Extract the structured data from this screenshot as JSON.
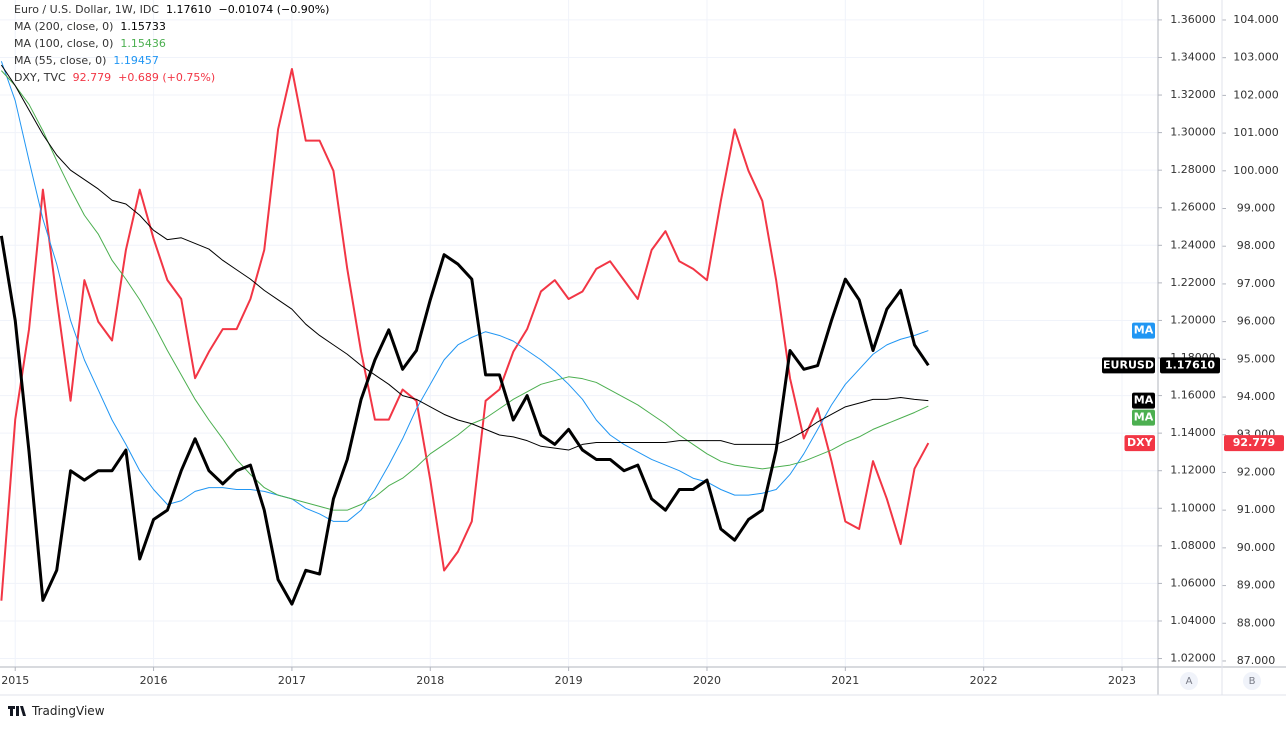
{
  "chart_data": {
    "type": "line",
    "xlim": [
      2014.89,
      2023.26
    ],
    "xticks": [
      2015,
      2016,
      2017,
      2018,
      2019,
      2020,
      2021,
      2022,
      2023
    ],
    "ylim": [
      1.0155,
      1.3706
    ],
    "yticks": [
      {
        "value": 1.02,
        "label": "1.02000"
      },
      {
        "value": 1.04,
        "label": "1.04000"
      },
      {
        "value": 1.06,
        "label": "1.06000"
      },
      {
        "value": 1.08,
        "label": "1.08000"
      },
      {
        "value": 1.1,
        "label": "1.10000"
      },
      {
        "value": 1.12,
        "label": "1.12000"
      },
      {
        "value": 1.14,
        "label": "1.14000"
      },
      {
        "value": 1.16,
        "label": "1.16000"
      },
      {
        "value": 1.18,
        "label": "1.18000"
      },
      {
        "value": 1.2,
        "label": "1.20000"
      },
      {
        "value": 1.22,
        "label": "1.22000"
      },
      {
        "value": 1.24,
        "label": "1.24000"
      },
      {
        "value": 1.26,
        "label": "1.26000"
      },
      {
        "value": 1.28,
        "label": "1.28000"
      },
      {
        "value": 1.3,
        "label": "1.30000"
      },
      {
        "value": 1.32,
        "label": "1.32000"
      },
      {
        "value": 1.34,
        "label": "1.34000"
      },
      {
        "value": 1.36,
        "label": "1.36000"
      }
    ],
    "y2lim": [
      86.84,
      104.53
    ],
    "y2ticks": [
      {
        "value": 87,
        "label": "87.000"
      },
      {
        "value": 88,
        "label": "88.000"
      },
      {
        "value": 89,
        "label": "89.000"
      },
      {
        "value": 90,
        "label": "90.000"
      },
      {
        "value": 91,
        "label": "91.000"
      },
      {
        "value": 92,
        "label": "92.000"
      },
      {
        "value": 93,
        "label": "93.000"
      },
      {
        "value": 94,
        "label": "94.000"
      },
      {
        "value": 95,
        "label": "95.000"
      },
      {
        "value": 96,
        "label": "96.000"
      },
      {
        "value": 97,
        "label": "97.000"
      },
      {
        "value": 98,
        "label": "98.000"
      },
      {
        "value": 99,
        "label": "99.000"
      },
      {
        "value": 100,
        "label": "100.000"
      },
      {
        "value": 101,
        "label": "101.000"
      },
      {
        "value": 102,
        "label": "102.000"
      },
      {
        "value": 103,
        "label": "103.000"
      },
      {
        "value": 104,
        "label": "104.000"
      }
    ],
    "grid": true,
    "x": [
      2014.9,
      2015,
      2015.1,
      2015.2,
      2015.3,
      2015.4,
      2015.5,
      2015.6,
      2015.7,
      2015.8,
      2015.9,
      2016,
      2016.1,
      2016.2,
      2016.3,
      2016.4,
      2016.5,
      2016.6,
      2016.7,
      2016.8,
      2016.9,
      2017,
      2017.1,
      2017.2,
      2017.3,
      2017.4,
      2017.5,
      2017.6,
      2017.7,
      2017.8,
      2017.9,
      2018,
      2018.1,
      2018.2,
      2018.3,
      2018.4,
      2018.5,
      2018.6,
      2018.7,
      2018.8,
      2018.9,
      2019,
      2019.1,
      2019.2,
      2019.3,
      2019.4,
      2019.5,
      2019.6,
      2019.7,
      2019.8,
      2019.9,
      2020,
      2020.1,
      2020.2,
      2020.3,
      2020.4,
      2020.5,
      2020.6,
      2020.7,
      2020.8,
      2020.9,
      2021,
      2021.1,
      2021.2,
      2021.3,
      2021.4,
      2021.5,
      2021.6
    ],
    "series": [
      {
        "name": "Euro / U.S. Dollar, 1W, IDC",
        "last_label": "1.17610",
        "change_label": "−0.01074 (−0.90%)",
        "tag": "EURUSD",
        "show_value_on_axis": true,
        "color": "#000000",
        "width": 3,
        "values": [
          1.245,
          1.2,
          1.13,
          1.051,
          1.067,
          1.12,
          1.115,
          1.12,
          1.12,
          1.131,
          1.073,
          1.094,
          1.099,
          1.12,
          1.137,
          1.12,
          1.113,
          1.12,
          1.123,
          1.099,
          1.062,
          1.049,
          1.067,
          1.065,
          1.105,
          1.126,
          1.158,
          1.179,
          1.195,
          1.174,
          1.184,
          1.211,
          1.235,
          1.23,
          1.222,
          1.171,
          1.171,
          1.147,
          1.16,
          1.139,
          1.134,
          1.142,
          1.131,
          1.126,
          1.126,
          1.12,
          1.123,
          1.105,
          1.099,
          1.11,
          1.11,
          1.115,
          1.089,
          1.083,
          1.094,
          1.099,
          1.131,
          1.184,
          1.174,
          1.176,
          1.2,
          1.222,
          1.211,
          1.184,
          1.206,
          1.216,
          1.187,
          1.1761
        ]
      },
      {
        "name": "MA (200, close, 0)",
        "last_label": "1.15733",
        "tag": "MA",
        "show_value_on_axis": false,
        "color": "#000000",
        "width": 1,
        "values": [
          1.336,
          1.325,
          1.312,
          1.299,
          1.288,
          1.28,
          1.275,
          1.27,
          1.264,
          1.262,
          1.256,
          1.248,
          1.243,
          1.244,
          1.241,
          1.238,
          1.232,
          1.227,
          1.222,
          1.216,
          1.211,
          1.206,
          1.198,
          1.192,
          1.187,
          1.182,
          1.176,
          1.171,
          1.166,
          1.16,
          1.158,
          1.154,
          1.15,
          1.147,
          1.145,
          1.142,
          1.139,
          1.138,
          1.136,
          1.133,
          1.132,
          1.131,
          1.134,
          1.135,
          1.135,
          1.135,
          1.135,
          1.135,
          1.135,
          1.136,
          1.136,
          1.136,
          1.136,
          1.134,
          1.134,
          1.134,
          1.134,
          1.137,
          1.141,
          1.146,
          1.15,
          1.154,
          1.156,
          1.158,
          1.158,
          1.159,
          1.158,
          1.1573
        ]
      },
      {
        "name": "MA (100, close, 0)",
        "last_label": "1.15436",
        "tag": "MA",
        "show_value_on_axis": false,
        "color": "#4caf50",
        "width": 1,
        "values": [
          1.333,
          1.325,
          1.315,
          1.301,
          1.285,
          1.27,
          1.256,
          1.246,
          1.232,
          1.222,
          1.211,
          1.198,
          1.184,
          1.171,
          1.158,
          1.147,
          1.137,
          1.126,
          1.118,
          1.111,
          1.107,
          1.105,
          1.103,
          1.101,
          1.099,
          1.099,
          1.102,
          1.106,
          1.112,
          1.116,
          1.122,
          1.129,
          1.134,
          1.139,
          1.145,
          1.148,
          1.153,
          1.158,
          1.162,
          1.166,
          1.168,
          1.17,
          1.169,
          1.167,
          1.163,
          1.159,
          1.155,
          1.15,
          1.145,
          1.139,
          1.134,
          1.129,
          1.125,
          1.123,
          1.122,
          1.121,
          1.122,
          1.123,
          1.125,
          1.128,
          1.131,
          1.135,
          1.138,
          1.142,
          1.145,
          1.148,
          1.151,
          1.1544
        ]
      },
      {
        "name": "MA (55, close, 0)",
        "last_label": "1.19457",
        "tag": "MA",
        "show_value_on_axis": false,
        "color": "#2196f3",
        "width": 1,
        "values": [
          1.338,
          1.317,
          1.285,
          1.254,
          1.23,
          1.2,
          1.179,
          1.163,
          1.147,
          1.134,
          1.12,
          1.11,
          1.102,
          1.104,
          1.109,
          1.111,
          1.111,
          1.11,
          1.11,
          1.109,
          1.107,
          1.105,
          1.1,
          1.097,
          1.093,
          1.093,
          1.099,
          1.11,
          1.123,
          1.137,
          1.153,
          1.166,
          1.179,
          1.187,
          1.191,
          1.194,
          1.192,
          1.189,
          1.184,
          1.179,
          1.173,
          1.166,
          1.158,
          1.147,
          1.139,
          1.134,
          1.13,
          1.126,
          1.123,
          1.12,
          1.116,
          1.114,
          1.11,
          1.107,
          1.107,
          1.108,
          1.11,
          1.118,
          1.129,
          1.142,
          1.155,
          1.166,
          1.174,
          1.182,
          1.187,
          1.19,
          1.192,
          1.1946
        ]
      },
      {
        "name": "DXY, TVC",
        "last_label": "92.779",
        "change_label": "+0.689 (+0.75%)",
        "tag": "DXY",
        "show_value_on_axis": true,
        "axis": "y2",
        "color": "#f23645",
        "width": 2,
        "values": [
          88.6,
          93.4,
          95.8,
          99.5,
          96.6,
          93.9,
          97.1,
          96.0,
          95.5,
          97.9,
          99.5,
          98.2,
          97.1,
          96.6,
          94.5,
          95.2,
          95.8,
          95.8,
          96.6,
          97.9,
          101.1,
          102.7,
          100.8,
          100.8,
          100.0,
          97.4,
          95.2,
          93.4,
          93.4,
          94.2,
          93.9,
          91.8,
          89.4,
          89.9,
          90.7,
          93.9,
          94.2,
          95.2,
          95.8,
          96.8,
          97.1,
          96.6,
          96.8,
          97.4,
          97.6,
          97.1,
          96.6,
          97.9,
          98.4,
          97.6,
          97.4,
          97.1,
          99.2,
          101.1,
          100.0,
          99.2,
          97.1,
          94.5,
          92.9,
          93.7,
          92.3,
          90.7,
          90.5,
          92.3,
          91.3,
          90.1,
          92.1,
          92.779
        ]
      }
    ]
  },
  "ui": {
    "buttons": [
      "A",
      "B"
    ],
    "logo": "TradingView"
  }
}
